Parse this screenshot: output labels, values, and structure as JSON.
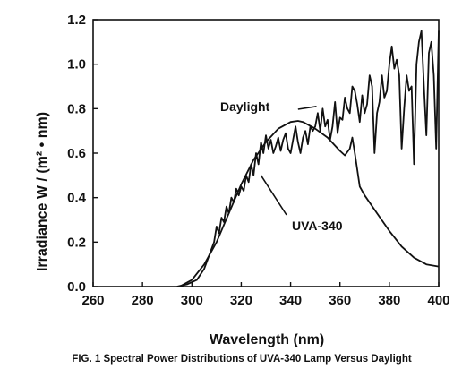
{
  "chart_data": {
    "type": "line",
    "title": "",
    "caption": "FIG. 1 Spectral Power Distributions of UVA-340 Lamp Versus Daylight",
    "xlabel": "Wavelength (nm)",
    "ylabel": "Irradiance W / (m² • nm)",
    "xlim": [
      260,
      400
    ],
    "ylim": [
      0.0,
      1.2
    ],
    "x_ticks": [
      "260",
      "280",
      "300",
      "320",
      "340",
      "360",
      "380",
      "400"
    ],
    "y_ticks": [
      "0.0",
      "0.2",
      "0.4",
      "0.6",
      "0.8",
      "1.0",
      "1.2"
    ],
    "grid": false,
    "legend": "none",
    "annotations": [
      {
        "text": "Daylight",
        "series": "Daylight"
      },
      {
        "text": "UVA-340",
        "series": "UVA-340"
      }
    ],
    "series": [
      {
        "name": "UVA-340",
        "color": "#111111",
        "x": [
          295,
          300,
          305,
          310,
          315,
          320,
          325,
          330,
          335,
          340,
          343,
          345,
          350,
          355,
          360,
          362,
          364,
          365,
          366,
          368,
          370,
          375,
          380,
          385,
          390,
          395,
          400
        ],
        "y": [
          0.0,
          0.03,
          0.1,
          0.2,
          0.33,
          0.46,
          0.57,
          0.65,
          0.71,
          0.74,
          0.745,
          0.74,
          0.71,
          0.67,
          0.61,
          0.59,
          0.62,
          0.67,
          0.6,
          0.45,
          0.41,
          0.33,
          0.25,
          0.18,
          0.13,
          0.1,
          0.09
        ]
      },
      {
        "name": "Daylight",
        "color": "#111111",
        "x": [
          294,
          298,
          302,
          305,
          307,
          309,
          310,
          311,
          312,
          313,
          314,
          315,
          316,
          317,
          318,
          319,
          320,
          321,
          322,
          323,
          324,
          325,
          326,
          327,
          328,
          329,
          330,
          331,
          332,
          333,
          334,
          335,
          336,
          337,
          338,
          339,
          340,
          341,
          342,
          343,
          344,
          345,
          346,
          347,
          348,
          349,
          350,
          351,
          352,
          353,
          354,
          355,
          356,
          357,
          358,
          359,
          360,
          361,
          362,
          363,
          364,
          365,
          366,
          367,
          368,
          369,
          370,
          371,
          372,
          373,
          374,
          375,
          376,
          377,
          378,
          379,
          380,
          381,
          382,
          383,
          384,
          385,
          386,
          387,
          388,
          389,
          390,
          391,
          392,
          393,
          394,
          395,
          396,
          397,
          398,
          399,
          400
        ],
        "y": [
          0.0,
          0.01,
          0.03,
          0.08,
          0.14,
          0.2,
          0.27,
          0.24,
          0.31,
          0.29,
          0.36,
          0.33,
          0.4,
          0.38,
          0.44,
          0.41,
          0.45,
          0.43,
          0.5,
          0.47,
          0.55,
          0.5,
          0.6,
          0.55,
          0.65,
          0.6,
          0.68,
          0.62,
          0.66,
          0.6,
          0.63,
          0.67,
          0.61,
          0.66,
          0.69,
          0.62,
          0.6,
          0.66,
          0.72,
          0.65,
          0.6,
          0.67,
          0.7,
          0.64,
          0.72,
          0.7,
          0.72,
          0.78,
          0.7,
          0.8,
          0.72,
          0.75,
          0.66,
          0.72,
          0.83,
          0.69,
          0.76,
          0.75,
          0.85,
          0.8,
          0.78,
          0.9,
          0.88,
          0.82,
          0.74,
          0.86,
          0.78,
          0.82,
          0.95,
          0.9,
          0.6,
          0.78,
          0.83,
          0.95,
          0.85,
          0.88,
          1.0,
          1.08,
          0.98,
          1.02,
          0.95,
          0.62,
          0.8,
          0.95,
          0.88,
          0.9,
          0.55,
          1.0,
          1.1,
          1.15,
          0.9,
          0.68,
          1.05,
          1.1,
          0.95,
          0.62,
          1.15
        ]
      }
    ]
  }
}
